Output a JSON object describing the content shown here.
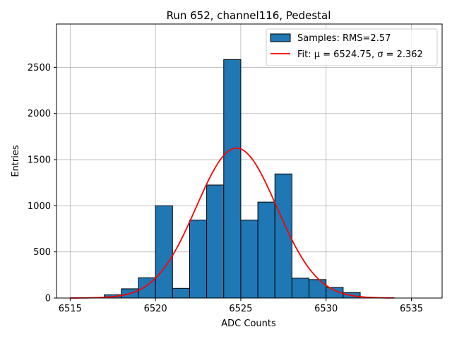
{
  "chart_data": {
    "type": "histogram",
    "title": "Run 652, channel116, Pedestal",
    "xlabel": "ADC Counts",
    "ylabel": "Entries",
    "xlim": [
      6514.2,
      6536.8
    ],
    "ylim": [
      0,
      2970
    ],
    "xticks": [
      6515,
      6520,
      6525,
      6530,
      6535
    ],
    "yticks": [
      0,
      500,
      1000,
      1500,
      2000,
      2500
    ],
    "grid": true,
    "legend_position": "top-right",
    "bin_width": 1,
    "bins": [
      {
        "x": 6517,
        "value": 35
      },
      {
        "x": 6518,
        "value": 100
      },
      {
        "x": 6519,
        "value": 220
      },
      {
        "x": 6520,
        "value": 1000
      },
      {
        "x": 6521,
        "value": 105
      },
      {
        "x": 6522,
        "value": 845
      },
      {
        "x": 6523,
        "value": 1225
      },
      {
        "x": 6524,
        "value": 2585
      },
      {
        "x": 6525,
        "value": 845
      },
      {
        "x": 6526,
        "value": 1040
      },
      {
        "x": 6527,
        "value": 1345
      },
      {
        "x": 6528,
        "value": 215
      },
      {
        "x": 6529,
        "value": 200
      },
      {
        "x": 6530,
        "value": 115
      },
      {
        "x": 6531,
        "value": 60
      }
    ],
    "series": [
      {
        "name": "Samples: RMS=2.57",
        "kind": "histogram",
        "color": "#1f77b4"
      },
      {
        "name": "Fit: μ = 6524.75, σ = 2.362",
        "kind": "gaussian",
        "color": "#ff0000",
        "mu": 6524.75,
        "sigma": 2.362,
        "amplitude": 1625,
        "x_range": [
          6515,
          6534
        ]
      }
    ]
  }
}
